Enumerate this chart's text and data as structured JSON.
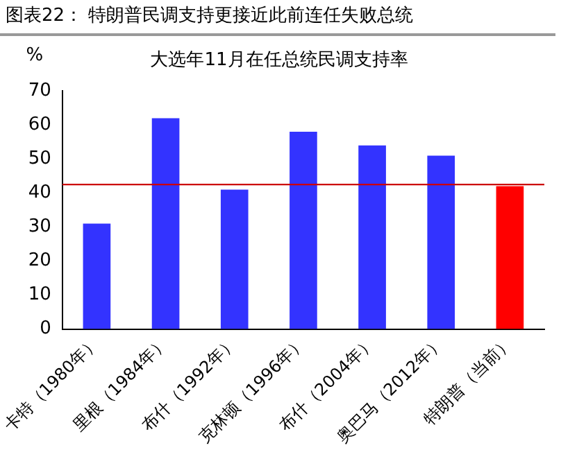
{
  "chart_data": {
    "type": "bar",
    "title": "图表22：   特朗普民调支持更接近此前连任失败总统",
    "subtitle": "大选年11月在任总统民调支持率",
    "ylabel": "%",
    "categories": [
      "卡特（1980年）",
      "里根（1984年）",
      "布什（1992年）",
      "克林顿（1996年）",
      "布什（2004年）",
      "奥巴马（2012年）",
      "特朗普（当前）"
    ],
    "values": [
      31,
      62,
      41,
      58,
      54,
      51,
      42
    ],
    "colors": [
      "#3333ff",
      "#3333ff",
      "#3333ff",
      "#3333ff",
      "#3333ff",
      "#3333ff",
      "#ff0000"
    ],
    "ylim": [
      0,
      70
    ],
    "yticks": [
      0,
      10,
      20,
      30,
      40,
      50,
      60,
      70
    ],
    "grid": false,
    "legend": false,
    "ref_lines": [
      {
        "axis": "y",
        "value": 42.5,
        "color": "#cc0000"
      }
    ]
  }
}
